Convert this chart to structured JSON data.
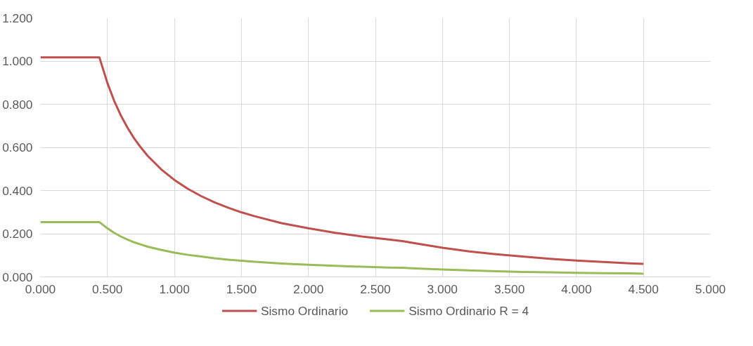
{
  "chart_data": {
    "type": "line",
    "x": [
      0,
      0.44,
      0.5,
      0.55,
      0.6,
      0.65,
      0.7,
      0.75,
      0.8,
      0.9,
      1.0,
      1.1,
      1.2,
      1.3,
      1.4,
      1.5,
      1.6,
      1.8,
      2.0,
      2.2,
      2.4,
      2.6,
      2.7,
      2.8,
      3.0,
      3.2,
      3.4,
      3.6,
      3.8,
      4.0,
      4.2,
      4.4,
      4.5
    ],
    "series": [
      {
        "name": "Sismo Ordinario",
        "color": "#c0504d",
        "values": [
          1.017,
          1.017,
          0.898,
          0.816,
          0.748,
          0.691,
          0.641,
          0.599,
          0.561,
          0.499,
          0.449,
          0.408,
          0.374,
          0.345,
          0.321,
          0.299,
          0.281,
          0.249,
          0.225,
          0.204,
          0.187,
          0.173,
          0.166,
          0.155,
          0.135,
          0.118,
          0.105,
          0.094,
          0.084,
          0.076,
          0.069,
          0.063,
          0.06
        ]
      },
      {
        "name": "Sismo Ordinario R = 4",
        "color": "#9bbb59",
        "values": [
          0.254,
          0.254,
          0.225,
          0.204,
          0.187,
          0.173,
          0.16,
          0.15,
          0.14,
          0.125,
          0.112,
          0.102,
          0.094,
          0.086,
          0.08,
          0.075,
          0.07,
          0.062,
          0.056,
          0.051,
          0.047,
          0.043,
          0.042,
          0.039,
          0.034,
          0.03,
          0.026,
          0.023,
          0.021,
          0.019,
          0.017,
          0.016,
          0.015
        ]
      }
    ],
    "xlim": [
      0,
      5
    ],
    "xticks": [
      {
        "value": 0,
        "label": "0.000"
      },
      {
        "value": 0.5,
        "label": "0.500"
      },
      {
        "value": 1,
        "label": "1.000"
      },
      {
        "value": 1.5,
        "label": "1.500"
      },
      {
        "value": 2,
        "label": "2.000"
      },
      {
        "value": 2.5,
        "label": "2.500"
      },
      {
        "value": 3,
        "label": "3.000"
      },
      {
        "value": 3.5,
        "label": "3.500"
      },
      {
        "value": 4,
        "label": "4.000"
      },
      {
        "value": 4.5,
        "label": "4.500"
      },
      {
        "value": 5,
        "label": "5.000"
      }
    ],
    "ylim": [
      0,
      1.2
    ],
    "yticks": [
      {
        "value": 0,
        "label": "0.000"
      },
      {
        "value": 0.2,
        "label": "0.200"
      },
      {
        "value": 0.4,
        "label": "0.400"
      },
      {
        "value": 0.6,
        "label": "0.600"
      },
      {
        "value": 0.8,
        "label": "0.800"
      },
      {
        "value": 1.0,
        "label": "1.000"
      },
      {
        "value": 1.2,
        "label": "1.200"
      }
    ],
    "grid": true,
    "legend": "bottom",
    "marker": "none",
    "line_style": "solid"
  }
}
